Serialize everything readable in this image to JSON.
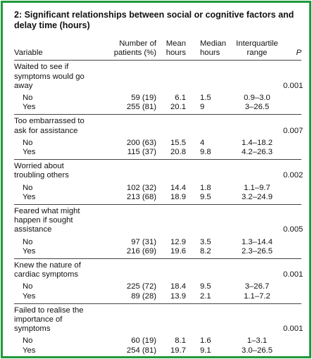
{
  "header": {
    "title": "2: Significant relationships between social or cognitive factors and delay time (hours)"
  },
  "table": {
    "columns": [
      "Variable",
      "Number of patients (%)",
      "Mean hours",
      "Median hours",
      "Interquartile range",
      "P"
    ],
    "groups": [
      {
        "label": "Waited to see if symptoms would go away",
        "p": "0.001",
        "rows": [
          [
            "No",
            "59 (19)",
            "6.1",
            "1.5",
            "0.9–3.0"
          ],
          [
            "Yes",
            "255 (81)",
            "20.1",
            "9",
            "3–26.5"
          ]
        ]
      },
      {
        "label": "Too embarrassed to ask for assistance",
        "p": "0.007",
        "rows": [
          [
            "No",
            "200 (63)",
            "15.5",
            "4",
            "1.4–18.2"
          ],
          [
            "Yes",
            "115 (37)",
            "20.8",
            "9.8",
            "4.2–26.3"
          ]
        ]
      },
      {
        "label": "Worried about troubling others",
        "p": "0.002",
        "rows": [
          [
            "No",
            "102 (32)",
            "14.4",
            "1.8",
            "1.1–9.7"
          ],
          [
            "Yes",
            "213 (68)",
            "18.9",
            "9.5",
            "3.2–24.9"
          ]
        ]
      },
      {
        "label": "Feared what might happen if sought assistance",
        "p": "0.005",
        "rows": [
          [
            "No",
            "97 (31)",
            "12.9",
            "3.5",
            "1.3–14.4"
          ],
          [
            "Yes",
            "216 (69)",
            "19.6",
            "8.2",
            "2.3–26.5"
          ]
        ]
      },
      {
        "label": "Knew the nature of cardiac symptoms",
        "p": "0.001",
        "rows": [
          [
            "No",
            "225 (72)",
            "18.4",
            "9.5",
            "3–26.7"
          ],
          [
            "Yes",
            "89 (28)",
            "13.9",
            "2.1",
            "1.1–7.2"
          ]
        ]
      },
      {
        "label": "Failed to realise the importance of symptoms",
        "p": "0.001",
        "rows": [
          [
            "No",
            "60 (19)",
            "8.1",
            "1.6",
            "1–3.1"
          ],
          [
            "Yes",
            "254 (81)",
            "19.7",
            "9.1",
            "3.0–26.5"
          ]
        ]
      }
    ]
  }
}
